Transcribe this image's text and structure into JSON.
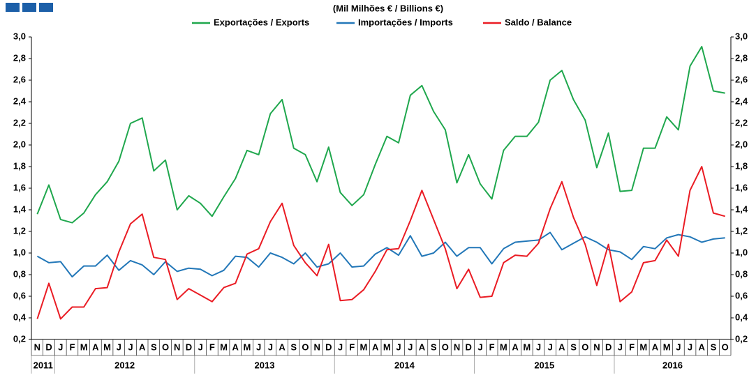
{
  "chart_data": {
    "type": "line",
    "title": "(Mil Milhões € / Billions €)",
    "categories": [
      "N",
      "D",
      "J",
      "F",
      "M",
      "A",
      "M",
      "J",
      "J",
      "A",
      "S",
      "O",
      "N",
      "D",
      "J",
      "F",
      "M",
      "A",
      "M",
      "J",
      "J",
      "A",
      "S",
      "O",
      "N",
      "D",
      "J",
      "F",
      "M",
      "A",
      "M",
      "J",
      "J",
      "A",
      "S",
      "O",
      "N",
      "D",
      "J",
      "F",
      "M",
      "A",
      "M",
      "J",
      "J",
      "A",
      "S",
      "O",
      "N",
      "D",
      "J",
      "F",
      "M",
      "A",
      "M",
      "J",
      "J",
      "A",
      "S",
      "O"
    ],
    "year_groups": [
      {
        "label": "2011",
        "months": 2
      },
      {
        "label": "2012",
        "months": 12
      },
      {
        "label": "2013",
        "months": 12
      },
      {
        "label": "2014",
        "months": 12
      },
      {
        "label": "2015",
        "months": 12
      },
      {
        "label": "2016",
        "months": 10
      }
    ],
    "series": [
      {
        "name": "Exportações / Exports",
        "color": "#1fa74d",
        "values": [
          1.36,
          1.63,
          1.31,
          1.28,
          1.37,
          1.54,
          1.66,
          1.85,
          2.2,
          2.25,
          1.76,
          1.86,
          1.4,
          1.53,
          1.46,
          1.34,
          1.52,
          1.69,
          1.95,
          1.91,
          2.29,
          2.42,
          1.97,
          1.91,
          1.66,
          1.98,
          1.56,
          1.44,
          1.54,
          1.82,
          2.08,
          2.02,
          2.46,
          2.55,
          2.31,
          2.14,
          1.65,
          1.91,
          1.64,
          1.5,
          1.95,
          2.08,
          2.08,
          2.21,
          2.6,
          2.69,
          2.42,
          2.23,
          1.79,
          2.11,
          1.57,
          1.58,
          1.97,
          1.97,
          2.26,
          2.14,
          2.73,
          2.91,
          2.5,
          2.48
        ]
      },
      {
        "name": "Importações / Imports",
        "color": "#2277b8",
        "values": [
          0.97,
          0.91,
          0.92,
          0.78,
          0.88,
          0.88,
          0.98,
          0.84,
          0.93,
          0.89,
          0.8,
          0.92,
          0.83,
          0.86,
          0.85,
          0.79,
          0.84,
          0.97,
          0.96,
          0.87,
          1.0,
          0.96,
          0.9,
          1.0,
          0.87,
          0.9,
          1.0,
          0.87,
          0.88,
          0.99,
          1.05,
          0.98,
          1.16,
          0.97,
          1.0,
          1.1,
          0.97,
          1.05,
          1.05,
          0.9,
          1.04,
          1.1,
          1.11,
          1.12,
          1.19,
          1.03,
          1.09,
          1.15,
          1.1,
          1.03,
          1.01,
          0.94,
          1.06,
          1.04,
          1.14,
          1.17,
          1.15,
          1.1,
          1.13,
          1.14
        ]
      },
      {
        "name": "Saldo / Balance",
        "color": "#ea1c24",
        "values": [
          0.39,
          0.72,
          0.39,
          0.5,
          0.5,
          0.67,
          0.68,
          1.01,
          1.27,
          1.36,
          0.96,
          0.94,
          0.57,
          0.67,
          0.61,
          0.55,
          0.68,
          0.72,
          0.99,
          1.04,
          1.29,
          1.46,
          1.07,
          0.91,
          0.79,
          1.08,
          0.56,
          0.57,
          0.66,
          0.83,
          1.03,
          1.04,
          1.3,
          1.58,
          1.31,
          1.04,
          0.67,
          0.85,
          0.59,
          0.6,
          0.91,
          0.98,
          0.97,
          1.09,
          1.41,
          1.66,
          1.33,
          1.08,
          0.7,
          1.08,
          0.55,
          0.64,
          0.91,
          0.93,
          1.12,
          0.97,
          1.58,
          1.8,
          1.37,
          1.34
        ]
      }
    ],
    "ylim": [
      0.2,
      3.0
    ],
    "yticks": [
      {
        "value": 0.2,
        "label": "0,2"
      },
      {
        "value": 0.4,
        "label": "0,4"
      },
      {
        "value": 0.6,
        "label": "0,6"
      },
      {
        "value": 0.8,
        "label": "0,8"
      },
      {
        "value": 1.0,
        "label": "1,0"
      },
      {
        "value": 1.2,
        "label": "1,2"
      },
      {
        "value": 1.4,
        "label": "1,4"
      },
      {
        "value": 1.6,
        "label": "1,6"
      },
      {
        "value": 1.8,
        "label": "1,8"
      },
      {
        "value": 2.0,
        "label": "2,0"
      },
      {
        "value": 2.2,
        "label": "2,2"
      },
      {
        "value": 2.4,
        "label": "2,4"
      },
      {
        "value": 2.6,
        "label": "2,6"
      },
      {
        "value": 2.8,
        "label": "2,8"
      },
      {
        "value": 3.0,
        "label": "3,0"
      }
    ],
    "y2lim": [
      0.2,
      3.0
    ],
    "y2ticks": [
      {
        "value": 0.2,
        "label": "0,2"
      },
      {
        "value": 0.4,
        "label": "0,4"
      },
      {
        "value": 0.6,
        "label": "0,6"
      },
      {
        "value": 0.8,
        "label": "0,8"
      },
      {
        "value": 1.0,
        "label": "1,0"
      },
      {
        "value": 1.2,
        "label": "1,2"
      },
      {
        "value": 1.4,
        "label": "1,4"
      },
      {
        "value": 1.6,
        "label": "1,6"
      },
      {
        "value": 1.8,
        "label": "1,8"
      },
      {
        "value": 2.0,
        "label": "2,0"
      },
      {
        "value": 2.2,
        "label": "2,2"
      },
      {
        "value": 2.4,
        "label": "2,4"
      },
      {
        "value": 2.6,
        "label": "2,6"
      },
      {
        "value": 2.8,
        "label": "2,8"
      },
      {
        "value": 3.0,
        "label": "3,0"
      }
    ],
    "legend": "top"
  }
}
